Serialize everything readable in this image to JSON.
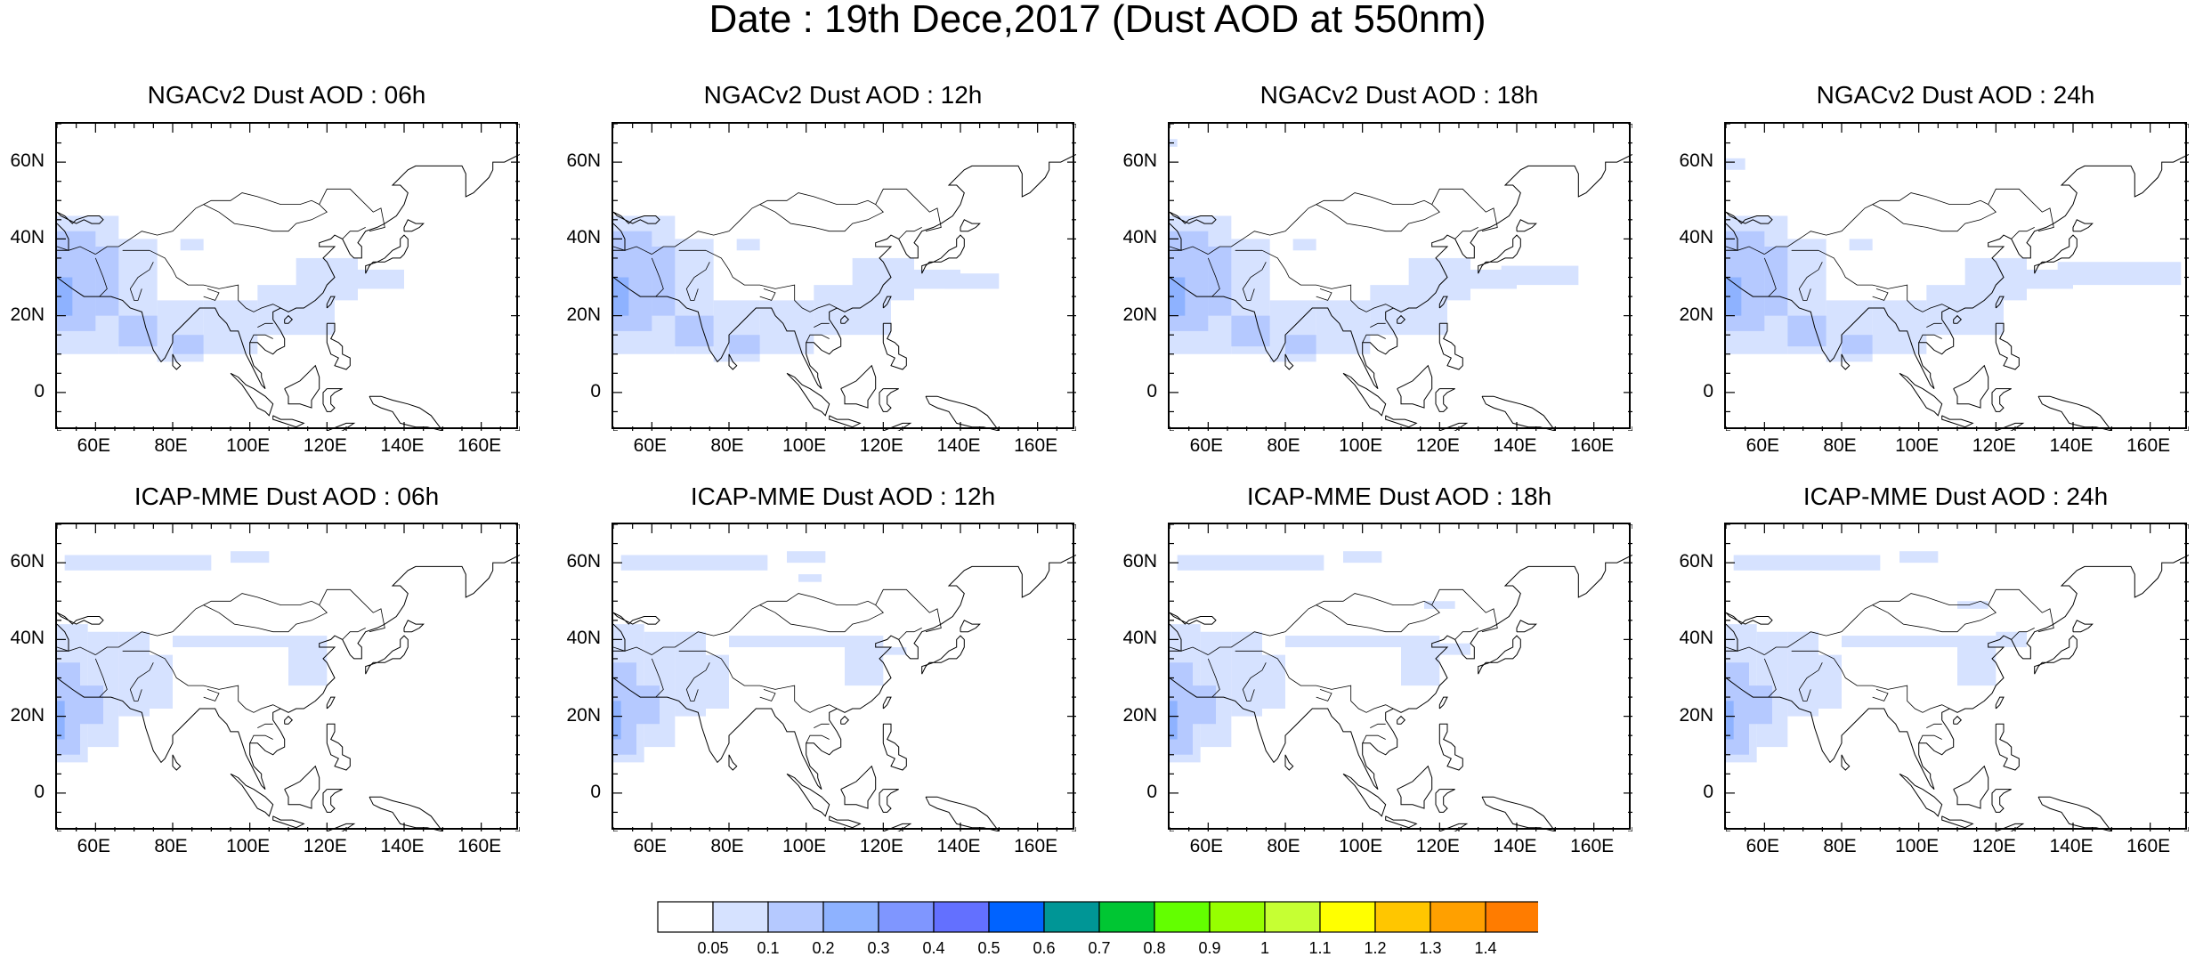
{
  "figure": {
    "title": "Date : 19th Dece,2017 (Dust AOD at 550nm)"
  },
  "map_axes": {
    "lat_labels": [
      "60N",
      "40N",
      "20N",
      "0"
    ],
    "lat_values": [
      60,
      40,
      20,
      0
    ],
    "lon_labels": [
      "60E",
      "80E",
      "100E",
      "120E",
      "140E",
      "160E"
    ],
    "lon_values": [
      60,
      80,
      100,
      120,
      140,
      160
    ],
    "lon_range": [
      50,
      170
    ],
    "lat_range": [
      -10,
      70
    ]
  },
  "panels": [
    {
      "title": "NGACv2 Dust AOD : 06h",
      "model": "NGACv2",
      "lead": "06h"
    },
    {
      "title": "NGACv2 Dust AOD : 12h",
      "model": "NGACv2",
      "lead": "12h"
    },
    {
      "title": "NGACv2 Dust AOD : 18h",
      "model": "NGACv2",
      "lead": "18h"
    },
    {
      "title": "NGACv2 Dust AOD : 24h",
      "model": "NGACv2",
      "lead": "24h"
    },
    {
      "title": "ICAP-MME Dust AOD : 06h",
      "model": "ICAP-MME",
      "lead": "06h"
    },
    {
      "title": "ICAP-MME Dust AOD : 12h",
      "model": "ICAP-MME",
      "lead": "12h"
    },
    {
      "title": "ICAP-MME Dust AOD : 18h",
      "model": "ICAP-MME",
      "lead": "18h"
    },
    {
      "title": "ICAP-MME Dust AOD : 24h",
      "model": "ICAP-MME",
      "lead": "24h"
    }
  ],
  "colorbar": {
    "labels": [
      "0.05",
      "0.1",
      "0.2",
      "0.3",
      "0.4",
      "0.5",
      "0.6",
      "0.7",
      "0.8",
      "0.9",
      "1",
      "1.1",
      "1.2",
      "1.3",
      "1.4"
    ],
    "colors": [
      "#ffffff",
      "#d6e2ff",
      "#b5c9ff",
      "#8eb2ff",
      "#7f96ff",
      "#6370ff",
      "#0063ff",
      "#009696",
      "#00c633",
      "#63ff00",
      "#96ff00",
      "#c6ff33",
      "#ffff00",
      "#ffc600",
      "#ffa000",
      "#ff7c00",
      "#ff1900"
    ]
  },
  "dust_colors": {
    "light": "#d6e2ff",
    "medium": "#b5c9ff",
    "strong": "#8eb2ff"
  }
}
